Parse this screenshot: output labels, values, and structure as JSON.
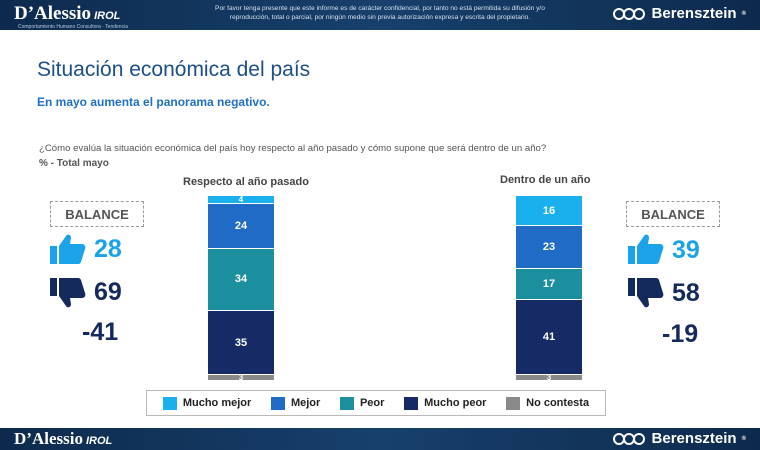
{
  "header": {
    "brand_left": "D’Alessio",
    "brand_left_suffix": "IROL",
    "brand_left_sub": "Comportamiento Humano Consultora · Tendencia",
    "disclaimer_line1": "Por favor tenga presente que este informe es de carácter confidencial, por tanto no está permitida su difusión y/o",
    "disclaimer_line2": "reproducción, total o parcial, por ningún medio sin previa autorización expresa y escrita del propietario.",
    "brand_right": "Berensztein"
  },
  "footer": {
    "brand_left": "D’Alessio",
    "brand_left_suffix": "IROL",
    "brand_right": "Berensztein"
  },
  "page": {
    "title": "Situación económica del país",
    "subtitle": "En mayo aumenta el panorama negativo.",
    "question": "¿Cómo evalúa la situación económica del país hoy respecto al año pasado y cómo supone que será dentro de un año?",
    "pct_label": "% - Total mayo"
  },
  "balance": {
    "label": "BALANCE",
    "left": {
      "positive": "28",
      "negative": "69",
      "net": "-41"
    },
    "right": {
      "positive": "39",
      "negative": "58",
      "net": "-19"
    }
  },
  "colors": {
    "mucho_mejor": "#1ab0ee",
    "mejor": "#1f6bc5",
    "peor": "#1b8f9d",
    "mucho_peor": "#162a66",
    "no_contesta": "#8a8a8a",
    "thumb_up": "#1aa3e8",
    "thumb_down": "#142a5c"
  },
  "chart_data": {
    "type": "bar",
    "stacked": true,
    "orientation": "vertical",
    "categories": [
      "Respecto al año pasado",
      "Dentro de un año"
    ],
    "series": [
      {
        "name": "Mucho mejor",
        "values": [
          4,
          16
        ]
      },
      {
        "name": "Mejor",
        "values": [
          24,
          23
        ]
      },
      {
        "name": "Peor",
        "values": [
          34,
          17
        ]
      },
      {
        "name": "Mucho peor",
        "values": [
          35,
          41
        ]
      },
      {
        "name": "No contesta",
        "values": [
          3,
          3
        ]
      }
    ],
    "legend_position": "bottom",
    "unit": "%"
  }
}
